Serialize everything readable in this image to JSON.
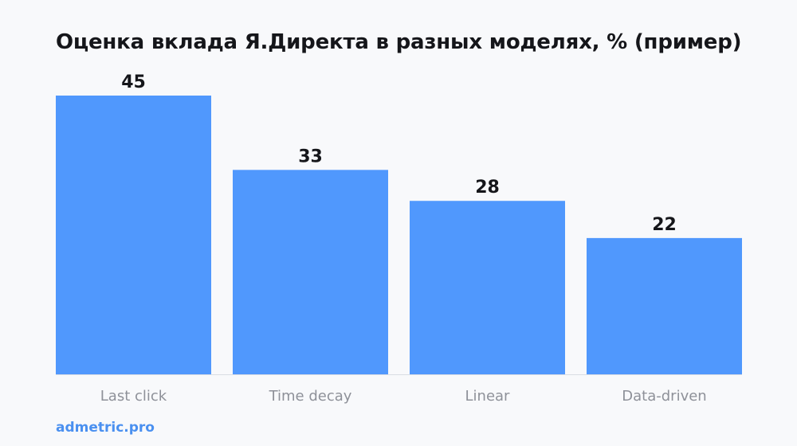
{
  "colors": {
    "bar": "#5098fd",
    "baseline": "#d9dde3",
    "brand": "#4a90f0"
  },
  "brand": {
    "text": "admetric.pro"
  },
  "chart_data": {
    "type": "bar",
    "title": "Оценка вклада Я.Директа в разных моделях, % (пример)",
    "categories": [
      "Last click",
      "Time decay",
      "Linear",
      "Data-driven"
    ],
    "values": [
      45,
      33,
      28,
      22
    ],
    "ylim": [
      0,
      45
    ],
    "grid": false,
    "legend": "none",
    "data_labels": true
  }
}
